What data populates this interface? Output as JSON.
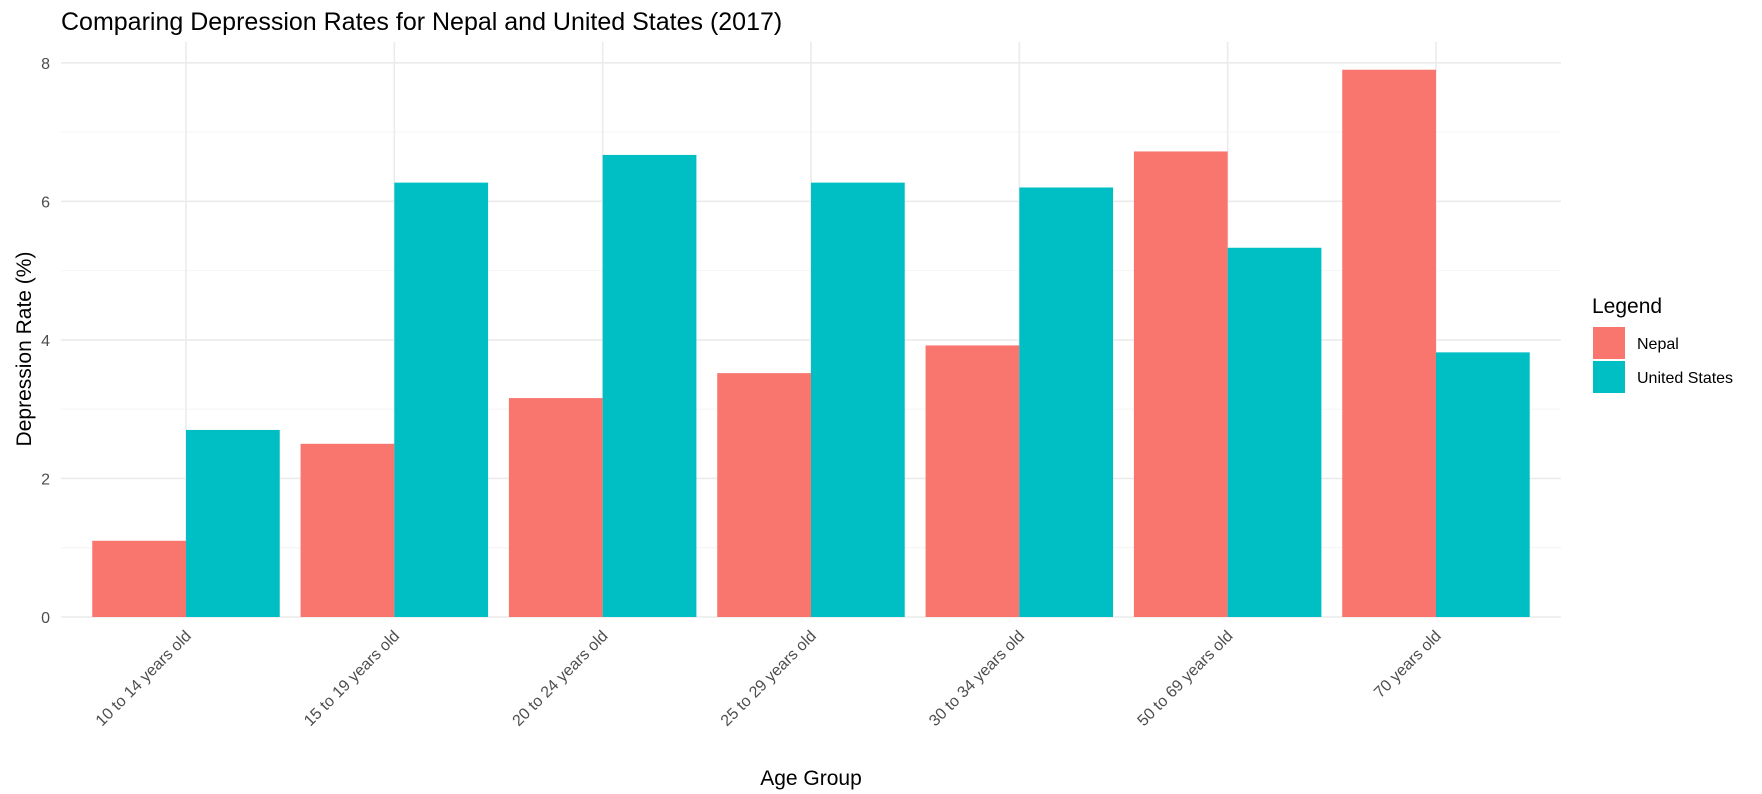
{
  "chart_data": {
    "type": "bar",
    "title": "Comparing Depression Rates for Nepal and United States (2017)",
    "xlabel": "Age Group",
    "ylabel": "Depression Rate (%)",
    "ylim": [
      0,
      8.3
    ],
    "yticks": [
      0,
      2,
      4,
      6,
      8
    ],
    "grid": true,
    "legend": {
      "title": "Legend",
      "position": "right"
    },
    "categories": [
      "10 to 14 years old",
      "15 to 19 years old",
      "20 to 24 years old",
      "25 to 29 years old",
      "30 to 34 years old",
      "50 to 69 years old",
      "70 years old"
    ],
    "series": [
      {
        "name": "Nepal",
        "color": "#F8766D",
        "values": [
          1.1,
          2.5,
          3.16,
          3.52,
          3.92,
          6.72,
          7.9
        ]
      },
      {
        "name": "United States",
        "color": "#00BFC4",
        "values": [
          2.7,
          6.27,
          6.67,
          6.27,
          6.2,
          5.33,
          3.82
        ]
      }
    ]
  }
}
